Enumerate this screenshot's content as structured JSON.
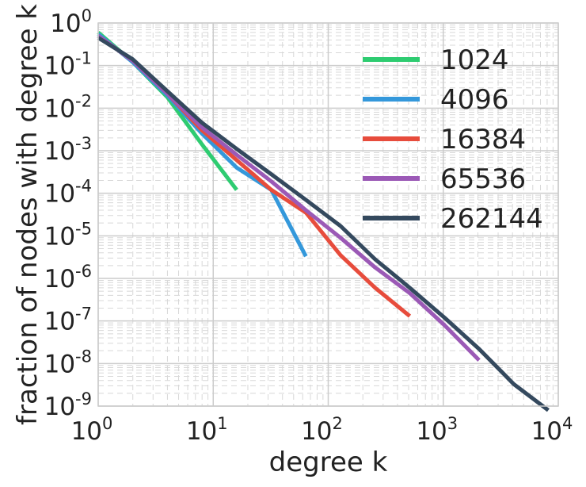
{
  "chart_data": {
    "type": "line",
    "xlabel": "degree k",
    "ylabel": "fraction of nodes with degree k",
    "xscale": "log",
    "yscale": "log",
    "xlim": [
      1,
      10000
    ],
    "ylim": [
      1e-09,
      1
    ],
    "x_ticks": [
      {
        "value": 1,
        "base": "10",
        "exp": "0"
      },
      {
        "value": 10,
        "base": "10",
        "exp": "1"
      },
      {
        "value": 100,
        "base": "10",
        "exp": "2"
      },
      {
        "value": 1000,
        "base": "10",
        "exp": "3"
      },
      {
        "value": 10000,
        "base": "10",
        "exp": "4"
      }
    ],
    "y_ticks": [
      {
        "value": 1,
        "base": "10",
        "exp": "0"
      },
      {
        "value": 0.1,
        "base": "10",
        "exp": "-1"
      },
      {
        "value": 0.01,
        "base": "10",
        "exp": "-2"
      },
      {
        "value": 0.001,
        "base": "10",
        "exp": "-3"
      },
      {
        "value": 0.0001,
        "base": "10",
        "exp": "-4"
      },
      {
        "value": 1e-05,
        "base": "10",
        "exp": "-5"
      },
      {
        "value": 1e-06,
        "base": "10",
        "exp": "-6"
      },
      {
        "value": 1e-07,
        "base": "10",
        "exp": "-7"
      },
      {
        "value": 1e-08,
        "base": "10",
        "exp": "-8"
      },
      {
        "value": 1e-09,
        "base": "10",
        "exp": "-9"
      }
    ],
    "grid": true,
    "minor_grid": true,
    "legend_position": "top-right",
    "series": [
      {
        "name": "1024",
        "color": "#2ecc71",
        "x": [
          1,
          2,
          4,
          8,
          16
        ],
        "y": [
          0.6,
          0.12,
          0.018,
          0.0014,
          0.00012
        ]
      },
      {
        "name": "4096",
        "color": "#3498db",
        "x": [
          1,
          2,
          4,
          8,
          16,
          32,
          64
        ],
        "y": [
          0.55,
          0.12,
          0.02,
          0.0025,
          0.0004,
          0.00012,
          3.3e-06
        ]
      },
      {
        "name": "16384",
        "color": "#e74c3c",
        "x": [
          1,
          2,
          4,
          8,
          16,
          32,
          64,
          128,
          256,
          512
        ],
        "y": [
          0.5,
          0.13,
          0.022,
          0.003,
          0.0006,
          0.00012,
          3.5e-05,
          3.5e-06,
          6e-07,
          1.3e-07
        ]
      },
      {
        "name": "65536",
        "color": "#9b59b6",
        "x": [
          1,
          2,
          4,
          8,
          16,
          32,
          64,
          128,
          256,
          512,
          1024,
          2048
        ],
        "y": [
          0.5,
          0.13,
          0.022,
          0.0035,
          0.0008,
          0.00019,
          4e-05,
          9e-06,
          1.8e-06,
          4.5e-07,
          8e-08,
          1.2e-08
        ]
      },
      {
        "name": "262144",
        "color": "#34495e",
        "x": [
          1,
          2,
          4,
          8,
          16,
          32,
          64,
          128,
          256,
          512,
          1024,
          2048,
          4096,
          8192
        ],
        "y": [
          0.45,
          0.14,
          0.025,
          0.0045,
          0.0011,
          0.00028,
          7e-05,
          1.7e-05,
          2.8e-06,
          6e-07,
          1.2e-07,
          2.2e-08,
          3.3e-09,
          8e-10
        ]
      }
    ]
  }
}
